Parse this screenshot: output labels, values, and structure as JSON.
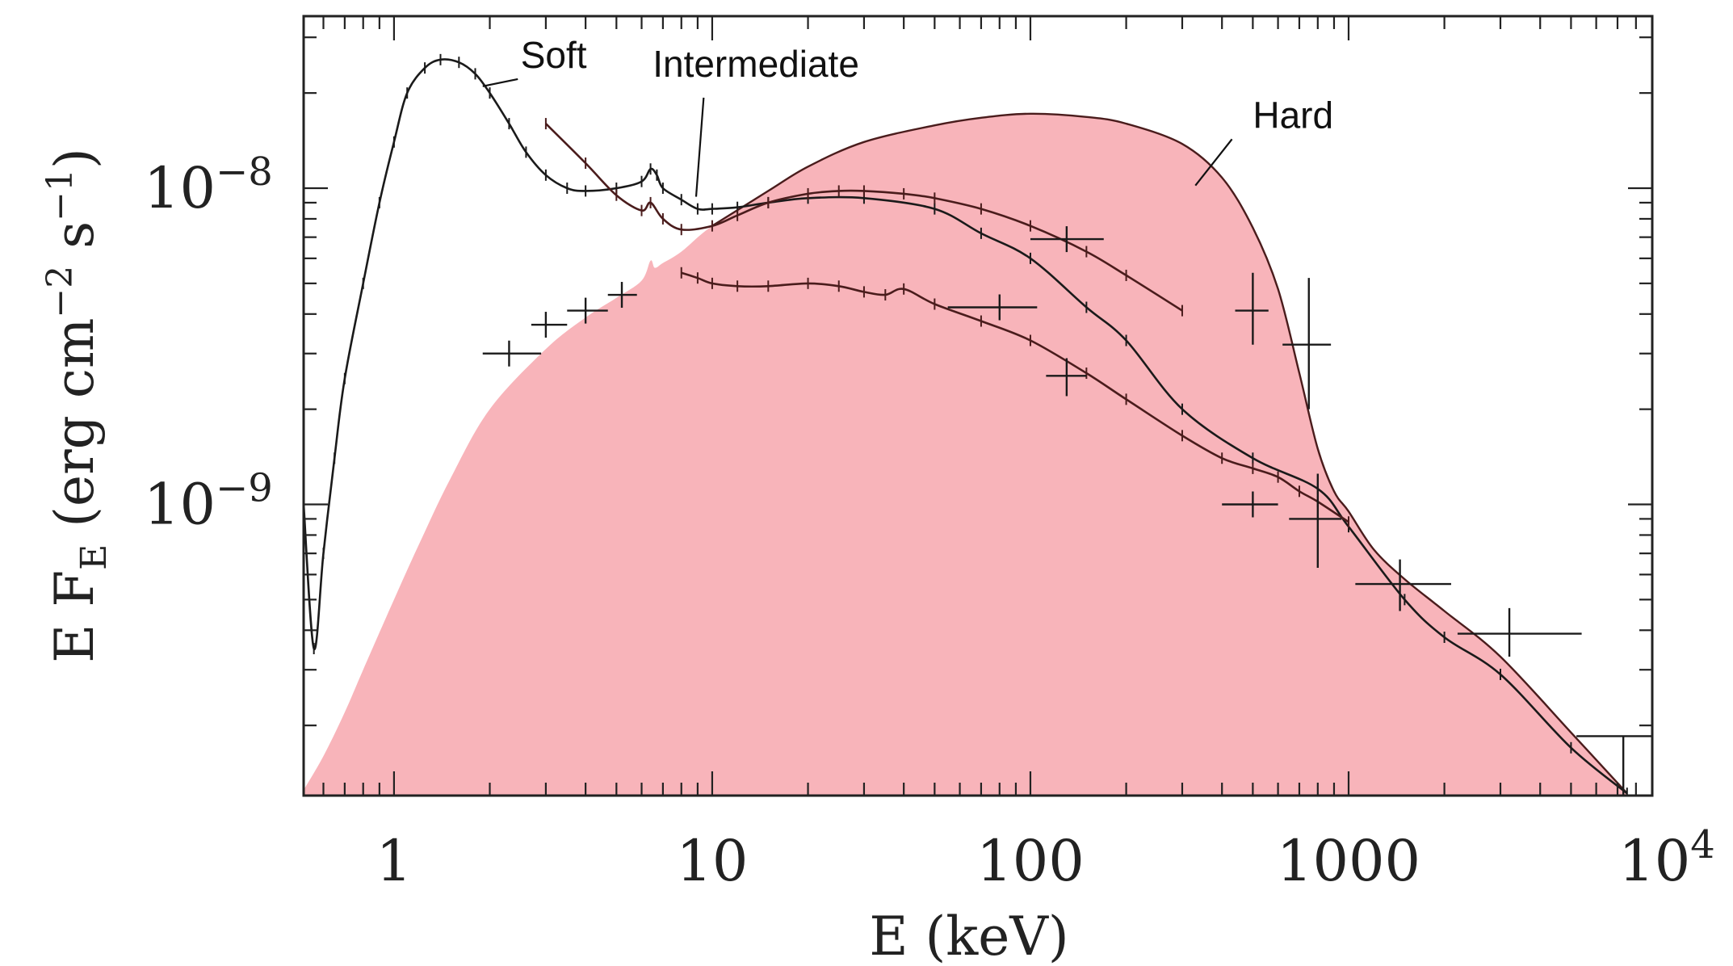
{
  "chart_data": {
    "type": "line",
    "xlabel": "E (keV)",
    "ylabel": "E F_E (erg cm⁻² s⁻¹)",
    "xscale": "log",
    "yscale": "log",
    "xlim": [
      0.52,
      9000
    ],
    "ylim": [
      1.2e-10,
      3.5e-08
    ],
    "x_ticks": [
      {
        "value": 1,
        "label": "1"
      },
      {
        "value": 10,
        "label": "10"
      },
      {
        "value": 100,
        "label": "100"
      },
      {
        "value": 1000,
        "label": "1000"
      },
      {
        "value": 10000,
        "label": "10",
        "sup": "4"
      }
    ],
    "y_ticks": [
      {
        "value": 1e-08,
        "label": "10",
        "sup": "−8"
      },
      {
        "value": 1e-09,
        "label": "10",
        "sup": "−9"
      }
    ],
    "ylabel_parts": {
      "main": "E F",
      "sub": "E",
      "rest": " (erg cm",
      "exp1": "−2",
      "mid": " s",
      "exp2": "−1",
      "end": ")"
    },
    "annotations": [
      {
        "text": "Soft",
        "x": 2.5,
        "y": 2.4e-08
      },
      {
        "text": "Intermediate",
        "x": 6.5,
        "y": 2.25e-08
      },
      {
        "text": "Hard",
        "x": 500,
        "y": 1.55e-08
      }
    ],
    "fill_color": "#f8b4ba",
    "series": [
      {
        "name": "Soft",
        "color": "#1a1a1a",
        "x": [
          0.52,
          0.56,
          0.6,
          0.65,
          0.7,
          0.8,
          0.9,
          1.0,
          1.1,
          1.25,
          1.4,
          1.6,
          1.8,
          2.0,
          2.3,
          2.6,
          3.0,
          3.5,
          4.0,
          5.0,
          6.0,
          6.4,
          6.7,
          7.0,
          8.0,
          9.0,
          10.0,
          12.0,
          15.0,
          20.0,
          30.0,
          50.0,
          70.0,
          100.0,
          150.0,
          200.0,
          300.0,
          500.0,
          800.0,
          1000.0,
          1500.0,
          2000.0,
          3000.0,
          5000.0,
          7500.0
        ],
        "y": [
          1e-09,
          3.5e-10,
          7e-10,
          1.4e-09,
          2.5e-09,
          5e-09,
          9e-09,
          1.4e-08,
          2e-08,
          2.4e-08,
          2.55e-08,
          2.5e-08,
          2.3e-08,
          2e-08,
          1.6e-08,
          1.3e-08,
          1.1e-08,
          1e-08,
          9.8e-09,
          1e-08,
          1.05e-08,
          1.15e-08,
          1.1e-08,
          1e-08,
          9.2e-09,
          8.6e-09,
          8.6e-09,
          8.7e-09,
          9e-09,
          9.3e-09,
          9.3e-09,
          8.6e-09,
          7.2e-09,
          6e-09,
          4.2e-09,
          3.3e-09,
          2e-09,
          1.4e-09,
          1.12e-09,
          8.5e-10,
          5e-10,
          3.8e-10,
          2.9e-10,
          1.7e-10,
          1.22e-10
        ]
      },
      {
        "name": "Intermediate",
        "color": "#4a1c1c",
        "x": [
          3.0,
          4.0,
          5.0,
          6.0,
          6.4,
          7.0,
          8.0,
          10.0,
          12.0,
          15.0,
          20.0,
          25.0,
          30.0,
          40.0,
          50.0,
          70.0,
          100.0,
          150.0,
          200.0,
          300.0
        ],
        "y": [
          1.6e-08,
          1.2e-08,
          9.5e-09,
          8.5e-09,
          9e-09,
          8e-09,
          7.4e-09,
          7.6e-09,
          8.2e-09,
          9e-09,
          9.6e-09,
          9.8e-09,
          9.8e-09,
          9.6e-09,
          9.3e-09,
          8.6e-09,
          7.6e-09,
          6.3e-09,
          5.3e-09,
          4.1e-09
        ]
      },
      {
        "name": "Hard",
        "color": "#4a1c1c",
        "x": [
          8.0,
          9.0,
          10.0,
          12.0,
          15.0,
          20.0,
          25.0,
          30.0,
          35.0,
          40.0,
          50.0,
          70.0,
          100.0,
          150.0,
          200.0,
          300.0,
          400.0,
          500.0,
          600.0,
          700.0,
          800.0,
          1000.0
        ],
        "y": [
          5.4e-09,
          5.2e-09,
          5e-09,
          4.9e-09,
          4.9e-09,
          5e-09,
          4.9e-09,
          4.7e-09,
          4.6e-09,
          4.8e-09,
          4.3e-09,
          3.8e-09,
          3.3e-09,
          2.6e-09,
          2.15e-09,
          1.65e-09,
          1.4e-09,
          1.3e-09,
          1.22e-09,
          1.1e-09,
          1.02e-09,
          8.8e-10
        ]
      },
      {
        "name": "Hard model (filled)",
        "x": [
          0.52,
          0.6,
          0.7,
          0.8,
          1.0,
          1.2,
          1.5,
          2.0,
          3.0,
          4.0,
          5.0,
          6.0,
          6.4,
          6.6,
          7.0,
          8.0,
          10.0,
          15.0,
          20.0,
          30.0,
          50.0,
          70.0,
          100.0,
          150.0,
          200.0,
          300.0,
          400.0,
          500.0,
          600.0,
          700.0,
          800.0,
          900.0,
          1000.0,
          1200.0,
          1500.0,
          2000.0,
          3000.0,
          5000.0,
          7500.0
        ],
        "y": [
          1.25e-10,
          1.6e-10,
          2.2e-10,
          3e-10,
          5e-10,
          7.5e-10,
          1.2e-09,
          2e-09,
          3.1e-09,
          3.9e-09,
          4.5e-09,
          5.1e-09,
          5.9e-09,
          5.6e-09,
          5.8e-09,
          6.3e-09,
          7.6e-09,
          9.8e-09,
          1.17e-08,
          1.4e-08,
          1.58e-08,
          1.67e-08,
          1.72e-08,
          1.68e-08,
          1.6e-08,
          1.38e-08,
          1.08e-08,
          7.5e-09,
          4.8e-09,
          2.6e-09,
          1.5e-09,
          1.1e-09,
          9.5e-10,
          7.2e-10,
          5.8e-10,
          4.6e-10,
          3.3e-10,
          1.9e-10,
          1.22e-10
        ]
      }
    ],
    "error_points": [
      {
        "x": 2.3,
        "y": 3e-09,
        "xlo": 1.9,
        "xhi": 2.9
      },
      {
        "x": 3.0,
        "y": 3.7e-09,
        "xlo": 2.7,
        "xhi": 3.5
      },
      {
        "x": 4.0,
        "y": 4.1e-09,
        "xlo": 3.5,
        "xhi": 4.7
      },
      {
        "x": 5.2,
        "y": 4.6e-09,
        "xlo": 4.7,
        "xhi": 5.8
      },
      {
        "x": 80.0,
        "y": 4.2e-09,
        "xlo": 55.0,
        "xhi": 105.0
      },
      {
        "x": 130.0,
        "y": 6.9e-09,
        "xlo": 100.0,
        "xhi": 170.0
      },
      {
        "x": 130.0,
        "y": 2.55e-09,
        "xlo": 112.0,
        "xhi": 150.0,
        "ylo": 2.2e-09,
        "yhi": 2.9e-09
      },
      {
        "x": 500.0,
        "y": 1e-09,
        "xlo": 400.0,
        "xhi": 600.0
      },
      {
        "x": 500.0,
        "y": 4.1e-09,
        "xlo": 440.0,
        "xhi": 560.0,
        "ylo": 3.2e-09,
        "yhi": 5.4e-09
      },
      {
        "x": 750.0,
        "y": 3.2e-09,
        "xlo": 620.0,
        "xhi": 880.0,
        "ylo": 2e-09,
        "yhi": 5.2e-09
      },
      {
        "x": 800.0,
        "y": 9e-10,
        "xlo": 650.0,
        "xhi": 950.0,
        "ylo": 6.3e-10,
        "yhi": 1.25e-09
      },
      {
        "x": 1450.0,
        "y": 5.6e-10,
        "xlo": 1050.0,
        "xhi": 2100.0,
        "ylo": 4.6e-10,
        "yhi": 6.7e-10
      },
      {
        "x": 3200.0,
        "y": 3.9e-10,
        "xlo": 2200.0,
        "xhi": 5400.0,
        "ylo": 3.3e-10,
        "yhi": 4.7e-10
      },
      {
        "x": 7300.0,
        "y": 1.85e-10,
        "xlo": 5200.0,
        "xhi": 9000.0,
        "ylo": 1.2e-10,
        "yhi": 1.85e-10
      }
    ]
  }
}
